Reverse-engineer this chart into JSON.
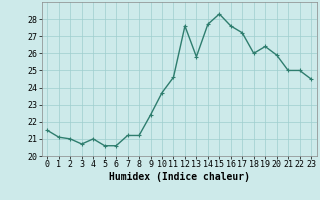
{
  "x": [
    0,
    1,
    2,
    3,
    4,
    5,
    6,
    7,
    8,
    9,
    10,
    11,
    12,
    13,
    14,
    15,
    16,
    17,
    18,
    19,
    20,
    21,
    22,
    23
  ],
  "y": [
    21.5,
    21.1,
    21.0,
    20.7,
    21.0,
    20.6,
    20.6,
    21.2,
    21.2,
    22.4,
    23.7,
    24.6,
    27.6,
    25.8,
    27.7,
    28.3,
    27.6,
    27.2,
    26.0,
    26.4,
    25.9,
    25.0,
    25.0,
    24.5
  ],
  "line_color": "#2e7d6e",
  "marker": "+",
  "marker_size": 3,
  "bg_color": "#cdeaea",
  "grid_color": "#9ecece",
  "xlabel": "Humidex (Indice chaleur)",
  "xlim": [
    -0.5,
    23.5
  ],
  "ylim": [
    20,
    29
  ],
  "yticks": [
    20,
    21,
    22,
    23,
    24,
    25,
    26,
    27,
    28
  ],
  "xticks": [
    0,
    1,
    2,
    3,
    4,
    5,
    6,
    7,
    8,
    9,
    10,
    11,
    12,
    13,
    14,
    15,
    16,
    17,
    18,
    19,
    20,
    21,
    22,
    23
  ],
  "xlabel_fontsize": 7,
  "tick_fontsize": 6,
  "line_width": 1.0
}
